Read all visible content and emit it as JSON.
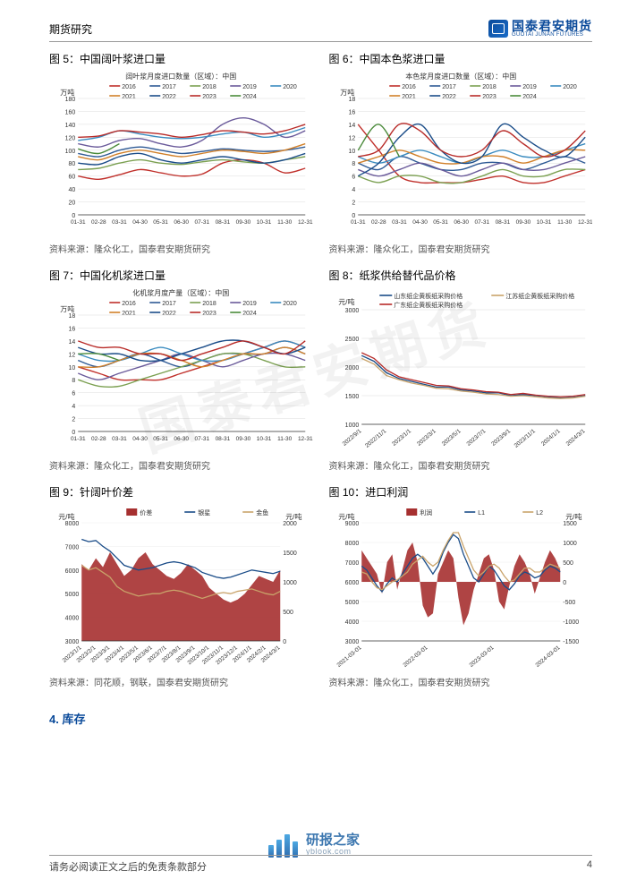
{
  "header": {
    "left": "期货研究",
    "logo_cn": "国泰君安期货",
    "logo_en": "GUOTAI JUNAN FUTURES"
  },
  "charts": {
    "c5": {
      "title_prefix": "图 5：",
      "title": "中国阔叶浆进口量",
      "subtitle": "阔叶浆月度进口数量（区域）：中国",
      "y_label": "万吨",
      "y_min": 0,
      "y_max": 180,
      "y_step": 20,
      "x_labels": [
        "01-31",
        "02-28",
        "03-31",
        "04-30",
        "05-31",
        "06-30",
        "07-31",
        "08-31",
        "09-30",
        "10-31",
        "11-30",
        "12-31"
      ],
      "series": [
        {
          "name": "2016",
          "color": "#c0302b",
          "values": [
            60,
            55,
            62,
            70,
            65,
            60,
            63,
            80,
            85,
            80,
            65,
            72
          ]
        },
        {
          "name": "2017",
          "color": "#2e5a95",
          "values": [
            95,
            90,
            100,
            105,
            100,
            95,
            98,
            102,
            100,
            98,
            100,
            105
          ]
        },
        {
          "name": "2018",
          "color": "#7ba051",
          "values": [
            70,
            72,
            80,
            85,
            80,
            78,
            82,
            85,
            82,
            80,
            85,
            90
          ]
        },
        {
          "name": "2019",
          "color": "#6a5a9a",
          "values": [
            110,
            105,
            115,
            118,
            110,
            105,
            115,
            140,
            150,
            140,
            120,
            130
          ]
        },
        {
          "name": "2020",
          "color": "#3a8bbf",
          "values": [
            115,
            120,
            130,
            125,
            120,
            118,
            120,
            125,
            128,
            120,
            125,
            135
          ]
        },
        {
          "name": "2021",
          "color": "#d1802a",
          "values": [
            90,
            85,
            95,
            100,
            95,
            90,
            95,
            100,
            98,
            95,
            100,
            110
          ]
        },
        {
          "name": "2022",
          "color": "#1a4c88",
          "values": [
            80,
            78,
            90,
            95,
            85,
            80,
            85,
            90,
            85,
            80,
            85,
            95
          ]
        },
        {
          "name": "2023",
          "color": "#b82b28",
          "values": [
            120,
            122,
            130,
            128,
            125,
            120,
            124,
            130,
            128,
            125,
            130,
            140
          ]
        },
        {
          "name": "2024",
          "color": "#4a8a3a",
          "values": [
            102,
            95,
            110,
            null,
            null,
            null,
            null,
            null,
            null,
            null,
            null,
            null
          ]
        }
      ]
    },
    "c6": {
      "title_prefix": "图 6：",
      "title": "中国本色浆进口量",
      "subtitle": "本色浆月度进口数量（区域）：中国",
      "y_label": "万吨",
      "y_min": 0,
      "y_max": 18,
      "y_step": 2,
      "x_labels": [
        "01-31",
        "02-28",
        "03-31",
        "04-30",
        "05-31",
        "06-30",
        "07-31",
        "08-31",
        "09-30",
        "10-31",
        "11-30",
        "12-31"
      ],
      "series": [
        {
          "name": "2016",
          "color": "#c0302b",
          "values": [
            14,
            10,
            6,
            5,
            5,
            5,
            5.5,
            6,
            5,
            5,
            6,
            7
          ]
        },
        {
          "name": "2017",
          "color": "#2e5a95",
          "values": [
            8,
            7,
            9,
            8,
            7,
            7,
            8,
            8,
            7,
            8,
            9,
            8
          ]
        },
        {
          "name": "2018",
          "color": "#7ba051",
          "values": [
            6,
            5,
            6,
            6,
            5,
            5,
            6,
            7,
            6,
            6,
            7,
            7
          ]
        },
        {
          "name": "2019",
          "color": "#6a5a9a",
          "values": [
            7,
            6,
            7,
            8,
            7,
            6,
            7,
            8,
            7,
            7,
            8,
            9
          ]
        },
        {
          "name": "2020",
          "color": "#3a8bbf",
          "values": [
            9,
            8,
            9,
            10,
            9,
            8,
            9,
            10,
            9,
            9,
            10,
            11
          ]
        },
        {
          "name": "2021",
          "color": "#d1802a",
          "values": [
            8,
            9,
            10,
            9,
            8,
            8,
            9,
            9,
            8,
            9,
            10,
            10
          ]
        },
        {
          "name": "2022",
          "color": "#1a4c88",
          "values": [
            6,
            8,
            12,
            14,
            10,
            8,
            9,
            14,
            12,
            10,
            9,
            12
          ]
        },
        {
          "name": "2023",
          "color": "#b82b28",
          "values": [
            9,
            10,
            14,
            13,
            10,
            9,
            10,
            13,
            11,
            9,
            10,
            13
          ]
        },
        {
          "name": "2024",
          "color": "#4a8a3a",
          "values": [
            10,
            14,
            9,
            null,
            null,
            null,
            null,
            null,
            null,
            null,
            null,
            null
          ]
        }
      ]
    },
    "c7": {
      "title_prefix": "图 7：",
      "title": "中国化机浆进口量",
      "subtitle": "化机浆月度产量（区域）：中国",
      "y_label": "万吨",
      "y_min": 0,
      "y_max": 18,
      "y_step": 2,
      "x_labels": [
        "01-31",
        "02-28",
        "03-31",
        "04-30",
        "05-31",
        "06-30",
        "07-31",
        "08-31",
        "09-30",
        "10-31",
        "11-30",
        "12-31"
      ],
      "series": [
        {
          "name": "2016",
          "color": "#c0302b",
          "values": [
            10,
            9,
            8,
            8,
            8,
            9,
            10,
            11,
            12,
            13,
            14,
            13
          ]
        },
        {
          "name": "2017",
          "color": "#2e5a95",
          "values": [
            11,
            10,
            11,
            12,
            11,
            10,
            11,
            12,
            12,
            12,
            13,
            12
          ]
        },
        {
          "name": "2018",
          "color": "#7ba051",
          "values": [
            8,
            7,
            7,
            8,
            9,
            10,
            11,
            12,
            12,
            11,
            10,
            10
          ]
        },
        {
          "name": "2019",
          "color": "#6a5a9a",
          "values": [
            9,
            8,
            9,
            10,
            11,
            12,
            11,
            10,
            11,
            12,
            12,
            11
          ]
        },
        {
          "name": "2020",
          "color": "#3a8bbf",
          "values": [
            12,
            11,
            11,
            12,
            13,
            12,
            11,
            11,
            12,
            13,
            14,
            13
          ]
        },
        {
          "name": "2021",
          "color": "#d1802a",
          "values": [
            10,
            10,
            11,
            12,
            12,
            11,
            10,
            11,
            12,
            12,
            13,
            12
          ]
        },
        {
          "name": "2022",
          "color": "#1a4c88",
          "values": [
            13,
            12,
            12,
            11,
            11,
            12,
            13,
            14,
            14,
            13,
            12,
            13
          ]
        },
        {
          "name": "2023",
          "color": "#b82b28",
          "values": [
            14,
            13,
            13,
            12,
            12,
            11,
            12,
            13,
            14,
            13,
            12,
            14
          ]
        },
        {
          "name": "2024",
          "color": "#4a8a3a",
          "values": [
            12,
            12,
            11,
            null,
            null,
            null,
            null,
            null,
            null,
            null,
            null,
            null
          ]
        }
      ]
    },
    "c8": {
      "title_prefix": "图 8：",
      "title": "纸浆供给替代品价格",
      "y_label": "元/吨",
      "y_min": 1000,
      "y_max": 3000,
      "y_step": 500,
      "x_labels": [
        "2022/9/1",
        "2022/11/1",
        "2023/1/1",
        "2023/3/1",
        "2023/5/1",
        "2023/7/1",
        "2023/9/1",
        "2023/11/1",
        "2024/1/1",
        "2024/3/1"
      ],
      "series": [
        {
          "name": "山东纸企黄板纸采购价格",
          "color": "#1a4c88",
          "values": [
            2200,
            2100,
            1900,
            1800,
            1750,
            1700,
            1650,
            1650,
            1600,
            1580,
            1550,
            1550,
            1500,
            1520,
            1500,
            1480,
            1460,
            1470,
            1500
          ]
        },
        {
          "name": "江苏纸企黄板纸采购价格",
          "color": "#c9a36a",
          "values": [
            2150,
            2050,
            1850,
            1780,
            1720,
            1680,
            1630,
            1620,
            1580,
            1560,
            1530,
            1520,
            1490,
            1500,
            1480,
            1460,
            1450,
            1460,
            1490
          ]
        },
        {
          "name": "广东纸企黄板纸采购价格",
          "color": "#b82b28",
          "values": [
            2250,
            2150,
            1950,
            1830,
            1780,
            1730,
            1680,
            1670,
            1620,
            1600,
            1570,
            1560,
            1520,
            1540,
            1510,
            1490,
            1480,
            1490,
            1520
          ]
        }
      ]
    },
    "c9": {
      "title_prefix": "图 9：",
      "title": "针阔叶价差",
      "y_label_left": "元/吨",
      "y_label_right": "元/吨",
      "y_left_min": 3000,
      "y_left_max": 8000,
      "y_left_step": 1000,
      "y_right_min": 0,
      "y_right_max": 2000,
      "y_right_step": 500,
      "x_labels": [
        "2023/1/1",
        "2023/2/1",
        "2023/3/1",
        "2023/4/1",
        "2023/5/1",
        "2023/6/1",
        "2023/7/1",
        "2023/8/1",
        "2023/9/1",
        "2023/10/1",
        "2023/11/1",
        "2023/12/1",
        "2024/1/1",
        "2024/2/1",
        "2024/3/1"
      ],
      "area": {
        "name": "价差",
        "color": "#a63030",
        "values": [
          1300,
          1200,
          1400,
          1250,
          1500,
          1300,
          1100,
          1200,
          1400,
          1500,
          1300,
          1200,
          1100,
          1050,
          1150,
          1300,
          1200,
          1100,
          900,
          800,
          700,
          650,
          700,
          800,
          950,
          1100,
          1050,
          1000,
          1200
        ]
      },
      "lines": [
        {
          "name": "银星",
          "color": "#1a4c88",
          "values": [
            7300,
            7200,
            7250,
            7000,
            6800,
            6500,
            6200,
            6100,
            6000,
            6050,
            6100,
            6200,
            6300,
            6350,
            6300,
            6200,
            6100,
            5900,
            5800,
            5700,
            5650,
            5700,
            5800,
            5900,
            6000,
            5950,
            5900,
            5850,
            5950
          ]
        },
        {
          "name": "金鱼",
          "color": "#c9a36a",
          "values": [
            6200,
            6000,
            6100,
            5900,
            5700,
            5300,
            5100,
            5000,
            4900,
            4950,
            5000,
            5000,
            5100,
            5150,
            5100,
            5000,
            4900,
            4800,
            4900,
            5000,
            5050,
            5000,
            5100,
            5150,
            5200,
            5100,
            5000,
            4950,
            5100
          ]
        }
      ]
    },
    "c10": {
      "title_prefix": "图 10：",
      "title": "进口利润",
      "y_label_left": "元/吨",
      "y_label_right": "元/吨",
      "y_left_min": 3000,
      "y_left_max": 9000,
      "y_left_step": 1000,
      "y_right_min": -1500,
      "y_right_max": 1500,
      "y_right_step": 500,
      "x_labels": [
        "2021-03-01",
        "2022-03-01",
        "2023-03-01",
        "2024-03-01"
      ],
      "area": {
        "name": "利润",
        "color": "#a63030",
        "values": [
          800,
          600,
          400,
          200,
          -300,
          500,
          700,
          -200,
          300,
          800,
          1000,
          500,
          -600,
          -900,
          -800,
          200,
          500,
          800,
          600,
          -400,
          -1100,
          -800,
          -200,
          200,
          600,
          700,
          300,
          -500,
          -700,
          -100,
          400,
          700,
          500,
          200,
          -300,
          100,
          500,
          800,
          600,
          300
        ]
      },
      "lines": [
        {
          "name": "L1",
          "color": "#1a4c88",
          "values": [
            6800,
            6600,
            6200,
            5800,
            5500,
            5900,
            6200,
            6000,
            6400,
            6800,
            7200,
            7400,
            7200,
            6800,
            6400,
            6800,
            7500,
            8000,
            8400,
            8200,
            7400,
            6800,
            6200,
            6000,
            6400,
            6800,
            6600,
            6200,
            5800,
            5600,
            5900,
            6300,
            6500,
            6400,
            6200,
            6300,
            6600,
            6800,
            6700,
            6500
          ]
        },
        {
          "name": "L2",
          "color": "#c9a36a",
          "values": [
            6500,
            6400,
            6000,
            5700,
            5600,
            5800,
            6000,
            6100,
            6300,
            6500,
            6900,
            7100,
            7300,
            7000,
            6800,
            7000,
            7600,
            8100,
            8500,
            8500,
            7800,
            7200,
            6600,
            6300,
            6500,
            6800,
            6900,
            6700,
            6300,
            6000,
            6100,
            6400,
            6700,
            6700,
            6500,
            6500,
            6700,
            6900,
            6800,
            6700
          ]
        }
      ]
    }
  },
  "sources": {
    "s1": "资料来源：隆众化工，国泰君安期货研究",
    "s2": "资料来源：同花顺，钢联，国泰君安期货研究"
  },
  "section4": "4.  库存",
  "footer": {
    "disclaimer": "请务必阅读正文之后的免责条款部分",
    "page": "4"
  },
  "watermark": "国泰君安期货",
  "yblook": {
    "cn": "研报之家",
    "en": "yblook.com"
  }
}
